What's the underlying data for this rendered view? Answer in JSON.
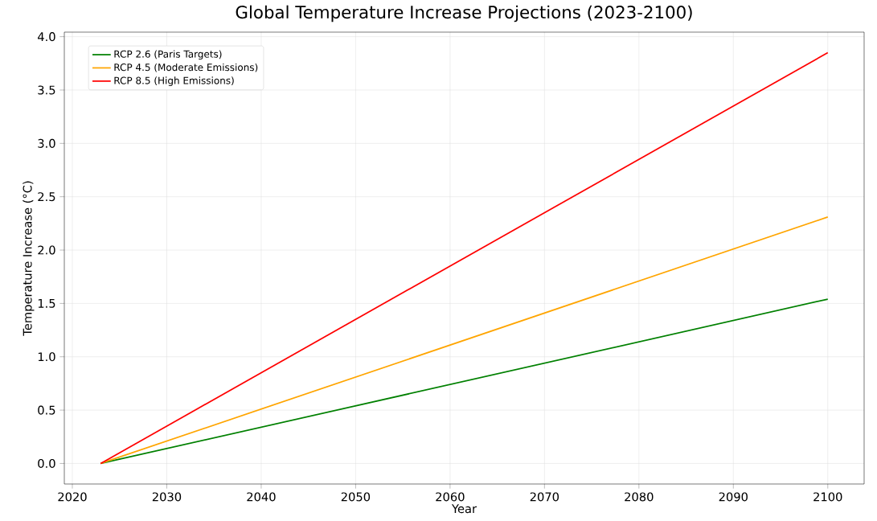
{
  "chart_data": {
    "type": "line",
    "title": "Global Temperature Increase Projections (2023-2100)",
    "xlabel": "Year",
    "ylabel": "Temperature Increase (°C)",
    "x": [
      2023,
      2100
    ],
    "series": [
      {
        "name": "RCP 2.6 (Paris Targets)",
        "color": "#008000",
        "values": [
          0,
          1.54
        ]
      },
      {
        "name": "RCP 4.5 (Moderate Emissions)",
        "color": "#ffa500",
        "values": [
          0,
          2.31
        ]
      },
      {
        "name": "RCP 8.5 (High Emissions)",
        "color": "#ff0000",
        "values": [
          0,
          3.85
        ]
      }
    ],
    "xlim": [
      2019.15,
      2103.85
    ],
    "ylim": [
      -0.1925,
      4.0425
    ],
    "xticks": [
      2020,
      2030,
      2040,
      2050,
      2060,
      2070,
      2080,
      2090,
      2100
    ],
    "yticks": [
      {
        "value": 0,
        "label": "0.0"
      },
      {
        "value": 0.5,
        "label": "0.5"
      },
      {
        "value": 1,
        "label": "1.0"
      },
      {
        "value": 1.5,
        "label": "1.5"
      },
      {
        "value": 2,
        "label": "2.0"
      },
      {
        "value": 2.5,
        "label": "2.5"
      },
      {
        "value": 3,
        "label": "3.0"
      },
      {
        "value": 3.5,
        "label": "3.5"
      },
      {
        "value": 4,
        "label": "4.0"
      }
    ],
    "grid": true,
    "legend": "top left",
    "marker": "none",
    "line_style": "solid"
  }
}
